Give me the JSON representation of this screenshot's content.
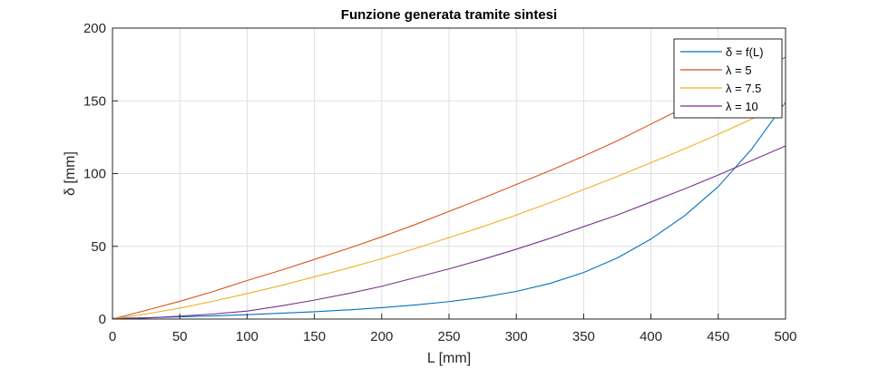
{
  "chart_data": {
    "type": "line",
    "title": "Funzione generata tramite sintesi",
    "xlabel": "L [mm]",
    "ylabel": "δ [mm]",
    "xlim": [
      0,
      500
    ],
    "ylim": [
      0,
      200
    ],
    "xticks": [
      0,
      50,
      100,
      150,
      200,
      250,
      300,
      350,
      400,
      450,
      500
    ],
    "yticks": [
      0,
      50,
      100,
      150,
      200
    ],
    "grid": true,
    "legend_position": "top-right",
    "x": [
      0,
      25,
      50,
      75,
      100,
      125,
      150,
      175,
      200,
      225,
      250,
      275,
      300,
      325,
      350,
      375,
      400,
      425,
      450,
      475,
      500
    ],
    "series": [
      {
        "name": "δ = f(L)",
        "color": "#0072BD",
        "values": [
          0.5,
          0.9,
          1.5,
          2.2,
          3.0,
          4.0,
          5.0,
          6.3,
          7.8,
          9.7,
          12.0,
          15.0,
          19.0,
          24.5,
          32.0,
          42.0,
          55.0,
          71.0,
          91.0,
          117.0,
          149.0
        ]
      },
      {
        "name": "λ = 5",
        "color": "#D95319",
        "values": [
          0,
          6.0,
          12.2,
          19.0,
          26.5,
          33.5,
          41.0,
          48.5,
          56.5,
          65.0,
          74.0,
          83.0,
          92.5,
          102.0,
          112.0,
          122.5,
          134.0,
          145.5,
          156.0,
          168.0,
          180.0
        ]
      },
      {
        "name": "λ = 7.5",
        "color": "#EDB120",
        "values": [
          0,
          3.5,
          7.5,
          12.3,
          17.5,
          23.0,
          29.0,
          35.0,
          41.5,
          48.5,
          56.0,
          63.5,
          71.5,
          80.0,
          89.0,
          98.0,
          107.5,
          117.0,
          127.0,
          137.5,
          148.0
        ]
      },
      {
        "name": "λ = 10",
        "color": "#7E2F8E",
        "values": [
          0,
          0.7,
          2.0,
          3.5,
          5.5,
          9.0,
          13.0,
          17.5,
          22.5,
          28.5,
          34.5,
          41.0,
          48.0,
          55.5,
          63.5,
          71.5,
          80.5,
          89.5,
          99.0,
          109.0,
          119.0
        ]
      }
    ]
  }
}
